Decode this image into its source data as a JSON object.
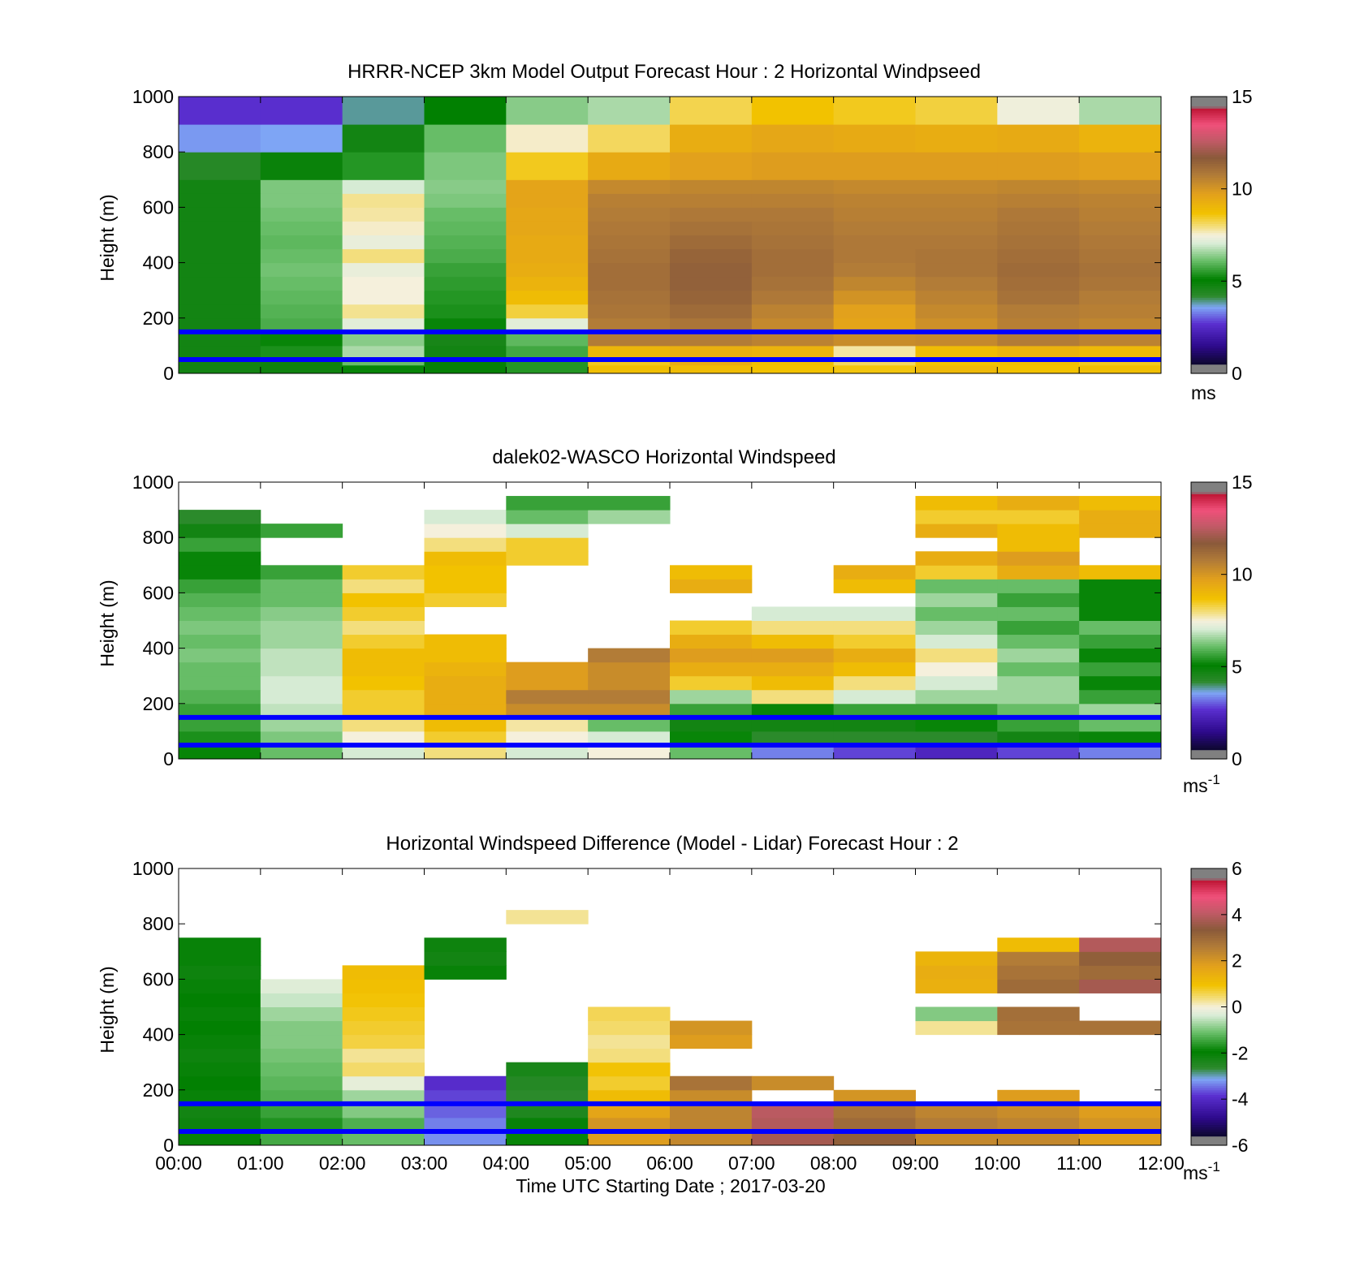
{
  "figure": {
    "x_axis_label": "Time UTC  Starting Date ; 2017-03-20",
    "x_tick_labels": [
      "00:00",
      "01:00",
      "02:00",
      "03:00",
      "04:00",
      "05:00",
      "06:00",
      "07:00",
      "08:00",
      "09:00",
      "10:00",
      "11:00",
      "12:00"
    ],
    "reference_line_color": "#0000ff"
  },
  "chart_data": [
    {
      "type": "heatmap",
      "title": "HRRR-NCEP 3km Model Output   Forecast Hour : 2 Horizontal Windpseed",
      "ylabel": "Height (m)",
      "xlim": [
        "00:00",
        "12:00"
      ],
      "ylim": [
        0,
        1000
      ],
      "y_ticks": [
        0,
        200,
        400,
        600,
        800,
        1000
      ],
      "colorbar": {
        "min": 0,
        "max": 15,
        "ticks": [
          0,
          5,
          10,
          15
        ],
        "unit": "ms"
      },
      "reference_lines_m": [
        150,
        50
      ],
      "x_bins_hours": [
        0,
        1,
        2,
        3,
        4,
        5,
        6,
        7,
        8,
        9,
        10,
        11,
        12
      ],
      "y_bins_m": [
        0,
        30,
        60,
        100,
        150,
        200,
        250,
        300,
        350,
        400,
        450,
        500,
        550,
        600,
        650,
        700,
        800,
        900,
        1000
      ],
      "values": [
        [
          4.5,
          4.6,
          5.0,
          4.8,
          5.3,
          8.9,
          9.0,
          8.8,
          8.7,
          9.1,
          8.8,
          8.9
        ],
        [
          4.5,
          4.6,
          6.0,
          4.8,
          5.3,
          8.6,
          9.5,
          8.9,
          8.2,
          8.8,
          8.9,
          8.6
        ],
        [
          4.5,
          5.2,
          6.6,
          4.5,
          5.6,
          9.2,
          9.4,
          9.3,
          7.8,
          9.0,
          9.3,
          9.1
        ],
        [
          4.5,
          5.0,
          6.3,
          4.4,
          5.9,
          11.0,
          11.0,
          10.8,
          10.5,
          10.6,
          11.0,
          10.8
        ],
        [
          4.5,
          5.7,
          7.2,
          5.0,
          7.2,
          11.0,
          11.2,
          10.6,
          9.8,
          10.4,
          10.9,
          10.7
        ],
        [
          4.5,
          5.8,
          7.9,
          5.2,
          8.4,
          11.2,
          11.5,
          10.8,
          9.9,
          10.6,
          11.0,
          10.9
        ],
        [
          4.5,
          5.9,
          7.5,
          5.3,
          9.0,
          11.3,
          11.7,
          11.1,
          10.3,
          10.8,
          11.3,
          11.0
        ],
        [
          4.5,
          6.0,
          7.5,
          5.4,
          9.3,
          11.4,
          11.8,
          11.3,
          10.7,
          11.0,
          11.4,
          11.2
        ],
        [
          4.5,
          6.1,
          7.3,
          5.5,
          9.5,
          11.4,
          11.8,
          11.4,
          11.0,
          11.2,
          11.5,
          11.3
        ],
        [
          4.5,
          6.0,
          8.0,
          5.7,
          9.6,
          11.3,
          11.7,
          11.4,
          11.1,
          11.2,
          11.4,
          11.2
        ],
        [
          4.5,
          5.9,
          7.3,
          5.8,
          9.6,
          11.2,
          11.5,
          11.3,
          11.1,
          11.1,
          11.3,
          11.1
        ],
        [
          4.5,
          6.0,
          7.6,
          5.9,
          9.7,
          11.1,
          11.3,
          11.2,
          11.0,
          11.0,
          11.2,
          11.0
        ],
        [
          4.5,
          6.1,
          7.8,
          6.0,
          9.7,
          11.0,
          11.1,
          11.1,
          10.9,
          10.9,
          11.1,
          10.9
        ],
        [
          4.5,
          6.2,
          7.9,
          6.2,
          9.8,
          10.9,
          10.9,
          10.9,
          10.8,
          10.8,
          10.9,
          10.8
        ],
        [
          4.5,
          6.2,
          7.0,
          6.3,
          9.8,
          10.6,
          10.7,
          10.7,
          10.6,
          10.6,
          10.7,
          10.6
        ],
        [
          4.1,
          4.7,
          5.3,
          6.2,
          8.6,
          9.6,
          9.9,
          10.0,
          10.0,
          10.0,
          10.0,
          9.9
        ],
        [
          3.2,
          3.3,
          4.5,
          6.0,
          7.6,
          8.2,
          9.5,
          9.7,
          9.6,
          9.5,
          9.6,
          9.3
        ],
        [
          2.3,
          2.3,
          3.6,
          4.9,
          6.3,
          6.6,
          8.3,
          8.8,
          8.6,
          8.4,
          7.4,
          6.6
        ]
      ]
    },
    {
      "type": "heatmap",
      "title": "dalek02-WASCO  Horizontal Windspeed",
      "ylabel": "Height (m)",
      "xlim": [
        "00:00",
        "12:00"
      ],
      "ylim": [
        0,
        1000
      ],
      "y_ticks": [
        0,
        200,
        400,
        600,
        800,
        1000
      ],
      "colorbar": {
        "min": 0,
        "max": 15,
        "ticks": [
          0,
          5,
          10,
          15
        ],
        "unit": "ms",
        "unit_exponent": "-1"
      },
      "reference_lines_m": [
        150,
        50
      ],
      "x_bins_hours": [
        0,
        1,
        2,
        3,
        4,
        5,
        6,
        7,
        8,
        9,
        10,
        11,
        12
      ],
      "y_bins_m": [
        0,
        50,
        100,
        150,
        200,
        250,
        300,
        350,
        400,
        450,
        500,
        550,
        600,
        650,
        700,
        750,
        800,
        850,
        900,
        950,
        1000
      ],
      "values": [
        [
          5.0,
          6.0,
          7.0,
          8.0,
          7.0,
          7.5,
          6.0,
          3.0,
          2.5,
          2.0,
          2.5,
          3.0
        ],
        [
          5.2,
          6.2,
          7.5,
          8.5,
          7.5,
          7.0,
          5.0,
          4.0,
          4.0,
          4.0,
          4.5,
          5.0
        ],
        [
          5.5,
          6.5,
          8.0,
          9.0,
          7.8,
          6.0,
          4.5,
          4.5,
          4.5,
          5.0,
          5.5,
          6.0
        ],
        [
          5.5,
          6.8,
          8.5,
          9.5,
          10.5,
          10.5,
          5.5,
          5.0,
          5.5,
          5.5,
          6.0,
          6.5
        ],
        [
          5.8,
          7.0,
          8.5,
          9.5,
          11.0,
          11.0,
          6.5,
          8.0,
          7.0,
          6.5,
          6.5,
          5.5
        ],
        [
          6.0,
          7.0,
          8.8,
          9.5,
          10.0,
          10.5,
          8.5,
          9.0,
          8.0,
          7.0,
          6.5,
          5.0
        ],
        [
          6.0,
          6.8,
          9.0,
          9.3,
          10.0,
          10.5,
          9.5,
          9.5,
          9.0,
          7.5,
          6.0,
          5.5
        ],
        [
          6.2,
          6.8,
          9.0,
          9.0,
          null,
          11.0,
          10.0,
          10.0,
          9.5,
          8.0,
          6.5,
          5.0
        ],
        [
          6.0,
          6.5,
          8.5,
          9.0,
          null,
          null,
          9.5,
          9.0,
          8.5,
          7.0,
          6.0,
          5.5
        ],
        [
          6.2,
          6.5,
          8.0,
          null,
          null,
          null,
          8.5,
          8.0,
          8.0,
          6.5,
          5.5,
          6.0
        ],
        [
          6.0,
          6.3,
          8.5,
          null,
          null,
          null,
          null,
          7.0,
          7.0,
          6.0,
          6.0,
          5.0
        ],
        [
          5.8,
          6.0,
          8.8,
          8.5,
          null,
          null,
          null,
          null,
          null,
          6.5,
          5.5,
          5.0
        ],
        [
          5.5,
          6.0,
          8.0,
          8.8,
          null,
          null,
          9.5,
          null,
          9.0,
          6.0,
          6.0,
          5.0
        ],
        [
          5.0,
          5.5,
          8.5,
          8.8,
          null,
          null,
          9.0,
          null,
          9.5,
          8.5,
          9.5,
          9.0
        ],
        [
          5.0,
          null,
          null,
          9.0,
          8.5,
          null,
          null,
          null,
          null,
          9.5,
          10.0,
          null
        ],
        [
          5.5,
          null,
          null,
          8.0,
          8.5,
          null,
          null,
          null,
          null,
          null,
          9.0,
          null
        ],
        [
          4.5,
          5.5,
          null,
          7.5,
          7.0,
          null,
          null,
          null,
          null,
          9.5,
          9.0,
          9.5
        ],
        [
          4.0,
          null,
          null,
          7.0,
          6.0,
          6.5,
          null,
          null,
          null,
          8.5,
          8.5,
          9.5
        ],
        [
          null,
          null,
          null,
          null,
          5.5,
          5.5,
          null,
          null,
          null,
          9.0,
          9.5,
          9.0
        ],
        [
          null,
          null,
          null,
          null,
          null,
          null,
          null,
          null,
          null,
          null,
          null,
          null
        ]
      ]
    },
    {
      "type": "heatmap",
      "title": "Horizontal Windspeed Difference (Model - Lidar) Forecast Hour : 2",
      "ylabel": "Height (m)",
      "xlim": [
        "00:00",
        "12:00"
      ],
      "ylim": [
        0,
        1000
      ],
      "y_ticks": [
        0,
        200,
        400,
        600,
        800,
        1000
      ],
      "colorbar": {
        "min": -6,
        "max": 6,
        "ticks": [
          -6,
          -4,
          -2,
          0,
          2,
          4,
          6
        ],
        "unit": "ms",
        "unit_exponent": "-1"
      },
      "reference_lines_m": [
        150,
        50
      ],
      "x_bins_hours": [
        0,
        1,
        2,
        3,
        4,
        5,
        6,
        7,
        8,
        9,
        10,
        11,
        12
      ],
      "y_bins_m": [
        0,
        50,
        100,
        150,
        200,
        250,
        300,
        350,
        400,
        450,
        500,
        550,
        600,
        650,
        700,
        750,
        800,
        850
      ],
      "values": [
        [
          -2.2,
          -1.5,
          -1.2,
          -3.5,
          -2.0,
          2.0,
          2.5,
          4.0,
          3.5,
          2.5,
          2.5,
          2.0
        ],
        [
          -2.3,
          -1.8,
          -1.4,
          -3.6,
          -2.2,
          2.2,
          2.6,
          4.2,
          3.2,
          2.8,
          2.6,
          2.2
        ],
        [
          -2.4,
          -1.6,
          -1.0,
          -3.8,
          -2.6,
          1.8,
          2.6,
          4.3,
          3.0,
          2.6,
          2.4,
          2.0
        ],
        [
          -2.2,
          -1.4,
          -0.8,
          -4.0,
          -2.8,
          1.2,
          2.4,
          null,
          2.2,
          null,
          2.0,
          null
        ],
        [
          -2.1,
          -1.3,
          -0.2,
          -4.2,
          -2.7,
          0.8,
          3.0,
          2.4,
          null,
          null,
          null,
          null
        ],
        [
          -2.2,
          -1.2,
          0.5,
          null,
          -2.5,
          1.0,
          null,
          null,
          null,
          null,
          null,
          null
        ],
        [
          -2.3,
          -1.1,
          0.3,
          null,
          null,
          0.4,
          null,
          null,
          null,
          null,
          null,
          null
        ],
        [
          -2.2,
          -1.0,
          0.7,
          null,
          null,
          0.3,
          2.0,
          null,
          null,
          null,
          null,
          null
        ],
        [
          -2.1,
          -1.0,
          0.8,
          null,
          null,
          0.5,
          2.2,
          null,
          null,
          0.3,
          3.0,
          3.0
        ],
        [
          -2.2,
          -0.8,
          0.9,
          null,
          null,
          0.6,
          null,
          null,
          null,
          -1.0,
          3.1,
          null
        ],
        [
          -2.1,
          -0.5,
          1.0,
          null,
          null,
          null,
          null,
          null,
          null,
          null,
          null,
          null
        ],
        [
          -2.2,
          -0.3,
          1.1,
          null,
          null,
          null,
          null,
          null,
          null,
          1.5,
          3.2,
          4.0
        ],
        [
          -2.3,
          null,
          1.2,
          -2.2,
          null,
          null,
          null,
          null,
          null,
          1.6,
          3.0,
          3.2
        ],
        [
          -2.2,
          null,
          null,
          -2.4,
          null,
          null,
          null,
          null,
          null,
          1.4,
          2.8,
          3.5
        ],
        [
          -2.2,
          null,
          null,
          -2.3,
          null,
          null,
          null,
          null,
          null,
          null,
          1.2,
          4.2
        ],
        [
          null,
          null,
          null,
          null,
          null,
          null,
          null,
          null,
          null,
          null,
          null,
          null
        ],
        [
          null,
          null,
          null,
          null,
          0.3,
          null,
          null,
          null,
          null,
          null,
          null,
          null
        ]
      ]
    }
  ]
}
